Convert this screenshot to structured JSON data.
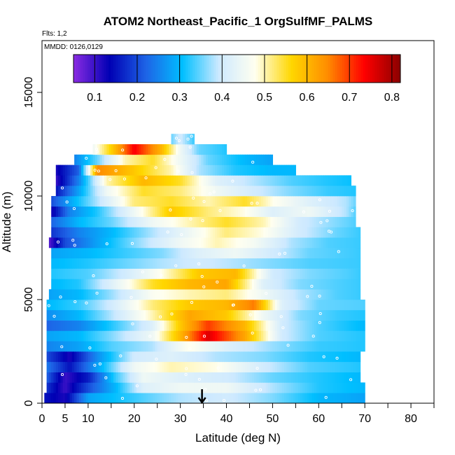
{
  "chart_data": {
    "type": "heatmap",
    "title": "ATOM2 Northeast_Pacific_1 OrgSulfMF_PALMS",
    "flights_label": "Flts: 1,2",
    "dates_label": "MMDD: 0126,0129",
    "xlabel": "Latitude (deg N)",
    "ylabel": "Altitude (m)",
    "xlim": [
      0,
      85
    ],
    "ylim": [
      0,
      17500
    ],
    "x_ticks": [
      0,
      5,
      10,
      20,
      30,
      40,
      50,
      60,
      70,
      80
    ],
    "y_ticks": [
      0,
      5000,
      10000,
      15000
    ],
    "y_tick_labels": [
      "0",
      "5000",
      "10000",
      "15000"
    ],
    "colorbar": {
      "min": 0.05,
      "max": 0.82,
      "ticks": [
        0.1,
        0.2,
        0.3,
        0.4,
        0.5,
        0.6,
        0.7,
        0.8
      ],
      "tick_labels": [
        "0.1",
        "0.2",
        "0.3",
        "0.4",
        "0.5",
        "0.6",
        "0.7",
        "0.8"
      ],
      "colors": [
        "#8a2be2",
        "#0000b4",
        "#1e64e6",
        "#00bfff",
        "#cde9ff",
        "#fffff0",
        "#ffd700",
        "#ff8c00",
        "#ff0000",
        "#8b0000"
      ]
    },
    "marker_latitude": 34.7,
    "altitude_bin_m": 500,
    "rows": [
      {
        "alt": 250,
        "lat_min": 0.5,
        "lat_max": 70,
        "v": [
          [
            0.5,
            0.15
          ],
          [
            5,
            0.12
          ],
          [
            10,
            0.28
          ],
          [
            20,
            0.33
          ],
          [
            30,
            0.38
          ],
          [
            40,
            0.4
          ],
          [
            50,
            0.36
          ],
          [
            60,
            0.3
          ],
          [
            70,
            0.28
          ]
        ]
      },
      {
        "alt": 750,
        "lat_min": 1,
        "lat_max": 70,
        "v": [
          [
            1,
            0.18
          ],
          [
            5,
            0.1
          ],
          [
            10,
            0.2
          ],
          [
            16,
            0.3
          ],
          [
            22,
            0.42
          ],
          [
            30,
            0.45
          ],
          [
            40,
            0.45
          ],
          [
            50,
            0.38
          ],
          [
            60,
            0.32
          ],
          [
            70,
            0.3
          ]
        ]
      },
      {
        "alt": 1250,
        "lat_min": 1,
        "lat_max": 69,
        "v": [
          [
            1,
            0.22
          ],
          [
            5,
            0.1
          ],
          [
            10,
            0.16
          ],
          [
            16,
            0.33
          ],
          [
            22,
            0.45
          ],
          [
            30,
            0.42
          ],
          [
            40,
            0.4
          ],
          [
            50,
            0.35
          ],
          [
            60,
            0.32
          ],
          [
            69,
            0.3
          ]
        ]
      },
      {
        "alt": 1750,
        "lat_min": 1,
        "lat_max": 69,
        "v": [
          [
            1,
            0.24
          ],
          [
            6,
            0.15
          ],
          [
            12,
            0.28
          ],
          [
            20,
            0.45
          ],
          [
            28,
            0.5
          ],
          [
            38,
            0.48
          ],
          [
            48,
            0.4
          ],
          [
            58,
            0.34
          ],
          [
            69,
            0.32
          ]
        ]
      },
      {
        "alt": 2250,
        "lat_min": 1,
        "lat_max": 69,
        "v": [
          [
            1,
            0.2
          ],
          [
            6,
            0.12
          ],
          [
            12,
            0.26
          ],
          [
            20,
            0.4
          ],
          [
            28,
            0.42
          ],
          [
            38,
            0.38
          ],
          [
            48,
            0.36
          ],
          [
            58,
            0.32
          ],
          [
            69,
            0.3
          ]
        ]
      },
      {
        "alt": 2750,
        "lat_min": 1,
        "lat_max": 70,
        "v": [
          [
            1,
            0.25
          ],
          [
            8,
            0.28
          ],
          [
            15,
            0.34
          ],
          [
            24,
            0.38
          ],
          [
            32,
            0.48
          ],
          [
            40,
            0.42
          ],
          [
            50,
            0.37
          ],
          [
            60,
            0.33
          ],
          [
            70,
            0.32
          ]
        ]
      },
      {
        "alt": 3250,
        "lat_min": 1,
        "lat_max": 70,
        "v": [
          [
            1,
            0.28
          ],
          [
            8,
            0.3
          ],
          [
            15,
            0.36
          ],
          [
            24,
            0.45
          ],
          [
            30,
            0.6
          ],
          [
            36,
            0.76
          ],
          [
            44,
            0.62
          ],
          [
            52,
            0.4
          ],
          [
            60,
            0.34
          ],
          [
            70,
            0.32
          ]
        ]
      },
      {
        "alt": 3750,
        "lat_min": 1,
        "lat_max": 70,
        "v": [
          [
            1,
            0.22
          ],
          [
            8,
            0.25
          ],
          [
            15,
            0.32
          ],
          [
            24,
            0.42
          ],
          [
            30,
            0.58
          ],
          [
            36,
            0.7
          ],
          [
            44,
            0.6
          ],
          [
            52,
            0.4
          ],
          [
            60,
            0.34
          ],
          [
            70,
            0.3
          ]
        ]
      },
      {
        "alt": 4250,
        "lat_min": 1,
        "lat_max": 70,
        "v": [
          [
            1,
            0.26
          ],
          [
            8,
            0.3
          ],
          [
            15,
            0.38
          ],
          [
            24,
            0.5
          ],
          [
            32,
            0.62
          ],
          [
            40,
            0.58
          ],
          [
            48,
            0.45
          ],
          [
            56,
            0.36
          ],
          [
            64,
            0.33
          ],
          [
            70,
            0.32
          ]
        ]
      },
      {
        "alt": 4750,
        "lat_min": 1,
        "lat_max": 70,
        "v": [
          [
            1,
            0.3
          ],
          [
            8,
            0.33
          ],
          [
            15,
            0.4
          ],
          [
            24,
            0.52
          ],
          [
            32,
            0.58
          ],
          [
            40,
            0.6
          ],
          [
            46,
            0.66
          ],
          [
            52,
            0.42
          ],
          [
            60,
            0.35
          ],
          [
            70,
            0.34
          ]
        ]
      },
      {
        "alt": 5250,
        "lat_min": 1.5,
        "lat_max": 69,
        "v": [
          [
            1.5,
            0.28
          ],
          [
            8,
            0.3
          ],
          [
            15,
            0.37
          ],
          [
            24,
            0.47
          ],
          [
            32,
            0.5
          ],
          [
            40,
            0.52
          ],
          [
            48,
            0.45
          ],
          [
            56,
            0.38
          ],
          [
            64,
            0.34
          ],
          [
            69,
            0.33
          ]
        ]
      },
      {
        "alt": 5750,
        "lat_min": 2,
        "lat_max": 69,
        "v": [
          [
            2,
            0.3
          ],
          [
            8,
            0.32
          ],
          [
            15,
            0.42
          ],
          [
            24,
            0.55
          ],
          [
            32,
            0.6
          ],
          [
            40,
            0.62
          ],
          [
            48,
            0.42
          ],
          [
            56,
            0.36
          ],
          [
            64,
            0.34
          ],
          [
            69,
            0.33
          ]
        ]
      },
      {
        "alt": 6250,
        "lat_min": 2,
        "lat_max": 69,
        "v": [
          [
            2,
            0.32
          ],
          [
            10,
            0.34
          ],
          [
            18,
            0.4
          ],
          [
            26,
            0.48
          ],
          [
            34,
            0.58
          ],
          [
            42,
            0.6
          ],
          [
            50,
            0.4
          ],
          [
            58,
            0.36
          ],
          [
            66,
            0.34
          ],
          [
            69,
            0.33
          ]
        ]
      },
      {
        "alt": 6750,
        "lat_min": 2,
        "lat_max": 69,
        "v": [
          [
            2,
            0.3
          ],
          [
            10,
            0.32
          ],
          [
            18,
            0.35
          ],
          [
            26,
            0.38
          ],
          [
            34,
            0.4
          ],
          [
            42,
            0.38
          ],
          [
            50,
            0.36
          ],
          [
            58,
            0.34
          ],
          [
            69,
            0.33
          ]
        ]
      },
      {
        "alt": 7250,
        "lat_min": 2,
        "lat_max": 69,
        "v": [
          [
            2,
            0.28
          ],
          [
            10,
            0.3
          ],
          [
            18,
            0.33
          ],
          [
            26,
            0.36
          ],
          [
            34,
            0.42
          ],
          [
            42,
            0.45
          ],
          [
            50,
            0.4
          ],
          [
            58,
            0.35
          ],
          [
            69,
            0.33
          ]
        ]
      },
      {
        "alt": 7750,
        "lat_min": 1.5,
        "lat_max": 69,
        "v": [
          [
            1.5,
            0.08
          ],
          [
            5,
            0.2
          ],
          [
            12,
            0.28
          ],
          [
            20,
            0.36
          ],
          [
            30,
            0.45
          ],
          [
            38,
            0.5
          ],
          [
            46,
            0.46
          ],
          [
            54,
            0.38
          ],
          [
            62,
            0.34
          ],
          [
            69,
            0.33
          ]
        ]
      },
      {
        "alt": 8250,
        "lat_min": 2,
        "lat_max": 69,
        "v": [
          [
            2,
            0.18
          ],
          [
            8,
            0.25
          ],
          [
            15,
            0.3
          ],
          [
            24,
            0.38
          ],
          [
            32,
            0.45
          ],
          [
            40,
            0.52
          ],
          [
            48,
            0.48
          ],
          [
            56,
            0.4
          ],
          [
            64,
            0.35
          ],
          [
            69,
            0.33
          ]
        ]
      },
      {
        "alt": 8750,
        "lat_min": 2,
        "lat_max": 68,
        "v": [
          [
            2,
            0.22
          ],
          [
            8,
            0.3
          ],
          [
            15,
            0.35
          ],
          [
            24,
            0.45
          ],
          [
            32,
            0.5
          ],
          [
            40,
            0.55
          ],
          [
            48,
            0.5
          ],
          [
            56,
            0.4
          ],
          [
            64,
            0.36
          ],
          [
            68,
            0.34
          ]
        ]
      },
      {
        "alt": 9250,
        "lat_min": 2,
        "lat_max": 68,
        "v": [
          [
            2,
            0.12
          ],
          [
            6,
            0.25
          ],
          [
            12,
            0.32
          ],
          [
            20,
            0.45
          ],
          [
            28,
            0.58
          ],
          [
            36,
            0.52
          ],
          [
            44,
            0.48
          ],
          [
            50,
            0.42
          ],
          [
            58,
            0.45
          ],
          [
            66,
            0.38
          ],
          [
            68,
            0.34
          ]
        ]
      },
      {
        "alt": 9750,
        "lat_min": 2,
        "lat_max": 68,
        "v": [
          [
            2,
            0.2
          ],
          [
            6,
            0.28
          ],
          [
            12,
            0.38
          ],
          [
            20,
            0.52
          ],
          [
            28,
            0.55
          ],
          [
            36,
            0.5
          ],
          [
            44,
            0.55
          ],
          [
            50,
            0.48
          ],
          [
            58,
            0.42
          ],
          [
            66,
            0.38
          ],
          [
            68,
            0.35
          ]
        ]
      },
      {
        "alt": 10250,
        "lat_min": 3,
        "lat_max": 68,
        "v": [
          [
            3,
            0.15
          ],
          [
            8,
            0.28
          ],
          [
            14,
            0.45
          ],
          [
            22,
            0.55
          ],
          [
            30,
            0.52
          ],
          [
            38,
            0.45
          ],
          [
            46,
            0.4
          ],
          [
            54,
            0.36
          ],
          [
            62,
            0.33
          ],
          [
            68,
            0.32
          ]
        ]
      },
      {
        "alt": 10750,
        "lat_min": 3,
        "lat_max": 67,
        "v": [
          [
            3,
            0.1
          ],
          [
            8,
            0.25
          ],
          [
            14,
            0.5
          ],
          [
            22,
            0.6
          ],
          [
            30,
            0.55
          ],
          [
            38,
            0.42
          ],
          [
            46,
            0.38
          ],
          [
            54,
            0.34
          ],
          [
            62,
            0.32
          ],
          [
            67,
            0.31
          ]
        ]
      },
      {
        "alt": 11250,
        "lat_min": 3,
        "lat_max": 55,
        "v": [
          [
            3,
            0.12
          ],
          [
            8,
            0.22
          ],
          [
            12,
            0.65
          ],
          [
            20,
            0.58
          ],
          [
            28,
            0.5
          ],
          [
            34,
            0.38
          ],
          [
            42,
            0.32
          ],
          [
            50,
            0.3
          ],
          [
            55,
            0.3
          ]
        ]
      },
      {
        "alt": 11750,
        "lat_min": 7,
        "lat_max": 50,
        "v": [
          [
            7,
            0.25
          ],
          [
            12,
            0.35
          ],
          [
            18,
            0.5
          ],
          [
            24,
            0.55
          ],
          [
            30,
            0.45
          ],
          [
            36,
            0.35
          ],
          [
            44,
            0.3
          ],
          [
            50,
            0.28
          ]
        ]
      },
      {
        "alt": 12250,
        "lat_min": 11,
        "lat_max": 40,
        "v": [
          [
            11,
            0.45
          ],
          [
            16,
            0.6
          ],
          [
            20,
            0.74
          ],
          [
            26,
            0.6
          ],
          [
            30,
            0.45
          ],
          [
            34,
            0.35
          ],
          [
            40,
            0.32
          ]
        ]
      },
      {
        "alt": 12750,
        "lat_min": 28,
        "lat_max": 33,
        "v": [
          [
            28,
            0.35
          ],
          [
            30,
            0.4
          ],
          [
            33,
            0.33
          ]
        ]
      }
    ]
  }
}
